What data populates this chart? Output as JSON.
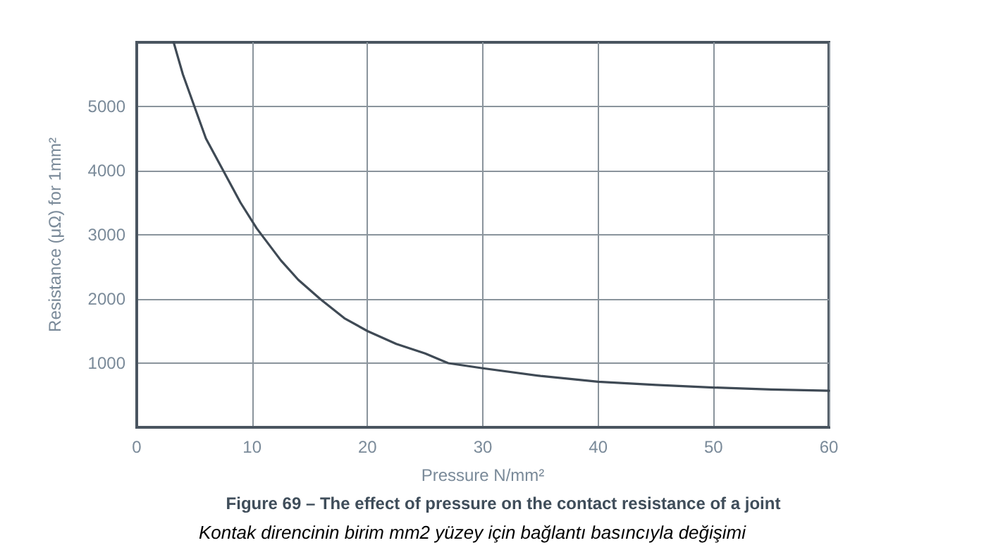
{
  "chart_data": {
    "type": "line",
    "title": "Figure 69 – The effect of pressure on the contact resistance of a joint",
    "subtitle": "Kontak direncinin birim mm2 yüzey için bağlantı basıncıyla değişimi",
    "xlabel": "Pressure N/mm²",
    "ylabel": "Resistance (μΩ) for 1mm²",
    "series": [
      {
        "color": "#3f4a55",
        "x": [
          3.2,
          4,
          5,
          6,
          7.5,
          9,
          10.4,
          12.5,
          14,
          15.9,
          18,
          20,
          22.5,
          25,
          27,
          30,
          35,
          40,
          45,
          50,
          55,
          60
        ],
        "values": [
          6000,
          5500,
          5000,
          4500,
          4000,
          3500,
          3100,
          2600,
          2300,
          2000,
          1700,
          1500,
          1300,
          1150,
          1000,
          920,
          800,
          710,
          660,
          620,
          590,
          570
        ]
      }
    ],
    "xlim": [
      0,
      60
    ],
    "xticks": [
      0,
      10,
      20,
      30,
      40,
      50,
      60
    ],
    "ylim": [
      0,
      6000
    ],
    "yticks": [
      1000,
      2000,
      3000,
      4000,
      5000
    ],
    "grid": true,
    "marker": "none",
    "line_style": "solid"
  }
}
